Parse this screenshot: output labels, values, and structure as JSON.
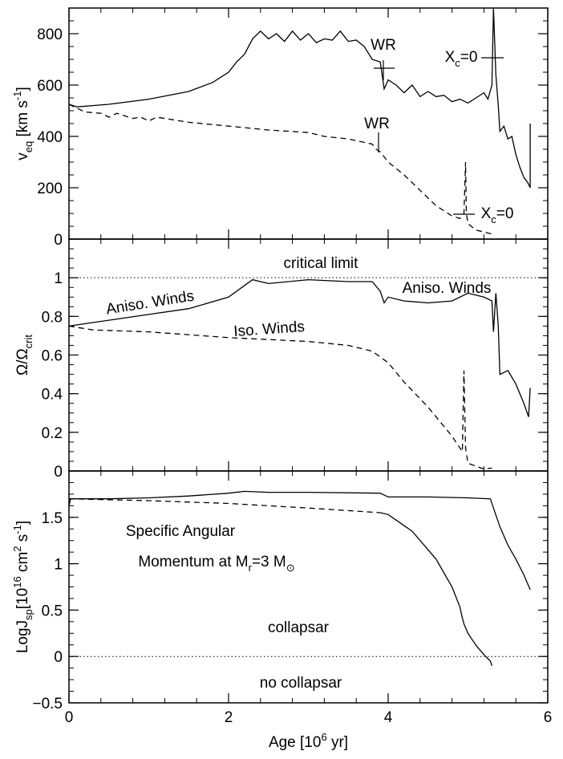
{
  "chart_data": [
    {
      "type": "line",
      "ylabel": [
        {
          "text": "v"
        },
        {
          "text": "eq",
          "shift": "sub"
        },
        {
          "text": " [km s"
        },
        {
          "text": "-1",
          "shift": "sup"
        },
        {
          "text": "]"
        }
      ],
      "xlim": [
        0,
        6
      ],
      "xticks": [
        0,
        2,
        4,
        6
      ],
      "xtick_labels": false,
      "ylim": [
        0,
        900
      ],
      "yticks": [
        0,
        200,
        400,
        600,
        800
      ],
      "annotations": [
        [
          {
            "text": "WR"
          }
        ],
        [
          {
            "text": "WR"
          }
        ],
        [
          {
            "text": "X"
          },
          {
            "text": "c",
            "shift": "sub"
          },
          {
            "text": "=0"
          }
        ],
        [
          {
            "text": "X"
          },
          {
            "text": "c",
            "shift": "sub"
          },
          {
            "text": "=0"
          }
        ]
      ],
      "series": [
        {
          "color": "#000000",
          "dash": false,
          "x": [
            0,
            0.1,
            0.5,
            1,
            1.5,
            1.8,
            2.0,
            2.1,
            2.2,
            2.3,
            2.4,
            2.5,
            2.6,
            2.7,
            2.8,
            2.9,
            3.0,
            3.1,
            3.2,
            3.3,
            3.4,
            3.5,
            3.6,
            3.7,
            3.8,
            3.9,
            3.95,
            4.0,
            4.1,
            4.2,
            4.3,
            4.4,
            4.5,
            4.6,
            4.7,
            4.8,
            4.9,
            5.0,
            5.1,
            5.2,
            5.25,
            5.3,
            5.32,
            5.35,
            5.38,
            5.4,
            5.45,
            5.5,
            5.55,
            5.6,
            5.65,
            5.7,
            5.75,
            5.78,
            5.78
          ],
          "values": [
            525,
            515,
            525,
            545,
            575,
            610,
            650,
            690,
            720,
            780,
            810,
            780,
            800,
            770,
            810,
            775,
            800,
            765,
            780,
            775,
            810,
            770,
            775,
            750,
            700,
            690,
            585,
            620,
            600,
            570,
            600,
            555,
            575,
            555,
            560,
            535,
            545,
            530,
            550,
            570,
            545,
            600,
            900,
            640,
            520,
            420,
            440,
            390,
            400,
            330,
            280,
            240,
            220,
            200,
            450
          ]
        },
        {
          "color": "#000000",
          "dash": true,
          "x": [
            0,
            0.2,
            0.4,
            0.5,
            0.6,
            0.7,
            0.8,
            0.9,
            1.0,
            1.1,
            1.3,
            1.5,
            2.0,
            2.5,
            3.0,
            3.2,
            3.5,
            3.8,
            3.85,
            3.9,
            4.0,
            4.2,
            4.4,
            4.6,
            4.8,
            4.9,
            4.95,
            4.97,
            4.98,
            5.0,
            5.1,
            5.3
          ],
          "values": [
            525,
            495,
            490,
            475,
            490,
            480,
            470,
            475,
            460,
            475,
            465,
            455,
            440,
            425,
            415,
            400,
            390,
            370,
            350,
            340,
            300,
            250,
            190,
            130,
            90,
            80,
            100,
            300,
            100,
            60,
            35,
            20
          ]
        }
      ]
    },
    {
      "type": "line",
      "ylabel": [
        {
          "text": "Ω/Ω"
        },
        {
          "text": "crit",
          "shift": "sub"
        }
      ],
      "xlim": [
        0,
        6
      ],
      "xticks": [
        0,
        2,
        4,
        6
      ],
      "xtick_labels": false,
      "ylim": [
        0,
        1.2
      ],
      "yticks": [
        0,
        0.2,
        0.4,
        0.6,
        0.8,
        1
      ],
      "hline": 1,
      "annotations": [
        [
          {
            "text": "critical limit"
          }
        ],
        [
          {
            "text": "Aniso. Winds"
          }
        ],
        [
          {
            "text": "Aniso. Winds"
          }
        ],
        [
          {
            "text": "Iso. Winds"
          }
        ]
      ],
      "series": [
        {
          "color": "#000000",
          "dash": false,
          "x": [
            0,
            0.5,
            1,
            1.5,
            2,
            2.2,
            2.3,
            2.5,
            3,
            3.5,
            3.8,
            3.9,
            3.95,
            4,
            4.2,
            4.5,
            4.8,
            5.0,
            5.2,
            5.3,
            5.32,
            5.35,
            5.38,
            5.4,
            5.5,
            5.6,
            5.7,
            5.76,
            5.78
          ],
          "values": [
            0.75,
            0.78,
            0.81,
            0.84,
            0.9,
            0.96,
            0.99,
            0.97,
            0.99,
            0.98,
            0.98,
            0.93,
            0.87,
            0.9,
            0.88,
            0.87,
            0.88,
            0.92,
            0.9,
            0.88,
            0.72,
            0.92,
            0.75,
            0.5,
            0.52,
            0.45,
            0.35,
            0.28,
            0.43
          ]
        },
        {
          "color": "#000000",
          "dash": true,
          "x": [
            0,
            0.3,
            1,
            2,
            3,
            3.5,
            3.8,
            4,
            4.2,
            4.5,
            4.8,
            4.93,
            4.95,
            4.97,
            5.0,
            5.2,
            5.3
          ],
          "values": [
            0.75,
            0.73,
            0.72,
            0.69,
            0.67,
            0.65,
            0.62,
            0.56,
            0.46,
            0.33,
            0.18,
            0.1,
            0.52,
            0.12,
            0.04,
            0.01,
            0.015
          ]
        }
      ]
    },
    {
      "type": "line",
      "ylabel": [
        {
          "text": "LogJ"
        },
        {
          "text": "sp",
          "shift": "sub"
        },
        {
          "text": "[10"
        },
        {
          "text": "16",
          "shift": "sup"
        },
        {
          "text": " cm"
        },
        {
          "text": "2",
          "shift": "sup"
        },
        {
          "text": " s"
        },
        {
          "text": "-1",
          "shift": "sup"
        },
        {
          "text": "]"
        }
      ],
      "xlabel": [
        {
          "text": "Age [10"
        },
        {
          "text": "6",
          "shift": "sup"
        },
        {
          "text": " yr]"
        }
      ],
      "xlim": [
        0,
        6
      ],
      "xticks": [
        0,
        2,
        4,
        6
      ],
      "xtick_labels": true,
      "ylim": [
        -0.5,
        2
      ],
      "yticks": [
        {
          "value": -0.5,
          "label": "−0.5"
        },
        0,
        0.5,
        1,
        1.5
      ],
      "hline": 0,
      "annotations": [
        [
          {
            "text": "Specific Angular"
          }
        ],
        [
          {
            "text": "Momentum at M"
          },
          {
            "text": "r",
            "shift": "sub"
          },
          {
            "text": "=3 M"
          },
          {
            "text": "⊙",
            "shift": "sub"
          }
        ],
        [
          {
            "text": "collapsar"
          }
        ],
        [
          {
            "text": "no collapsar"
          }
        ]
      ],
      "series": [
        {
          "color": "#000000",
          "dash": false,
          "x": [
            0,
            0.02,
            0.5,
            1,
            1.5,
            2.0,
            2.2,
            2.5,
            3,
            3.9,
            4.0,
            4.5,
            5,
            5.28,
            5.32,
            5.4,
            5.5,
            5.6,
            5.7,
            5.78
          ],
          "values": [
            1.62,
            1.7,
            1.7,
            1.71,
            1.73,
            1.76,
            1.78,
            1.77,
            1.77,
            1.76,
            1.72,
            1.72,
            1.71,
            1.7,
            1.6,
            1.4,
            1.2,
            1.05,
            0.88,
            0.72
          ]
        },
        {
          "color": "#000000",
          "dash": true,
          "x": [
            0,
            1,
            2,
            3,
            3.9
          ],
          "values": [
            1.7,
            1.68,
            1.65,
            1.6,
            1.55
          ]
        },
        {
          "color": "#000000",
          "dash": false,
          "x": [
            3.9,
            4,
            4.3,
            4.6,
            4.8,
            4.9,
            4.92,
            4.95,
            5.0,
            5.1,
            5.2,
            5.28,
            5.3
          ],
          "values": [
            1.55,
            1.53,
            1.35,
            1.05,
            0.75,
            0.53,
            0.45,
            0.35,
            0.25,
            0.12,
            0.02,
            -0.05,
            -0.1
          ]
        }
      ]
    }
  ]
}
